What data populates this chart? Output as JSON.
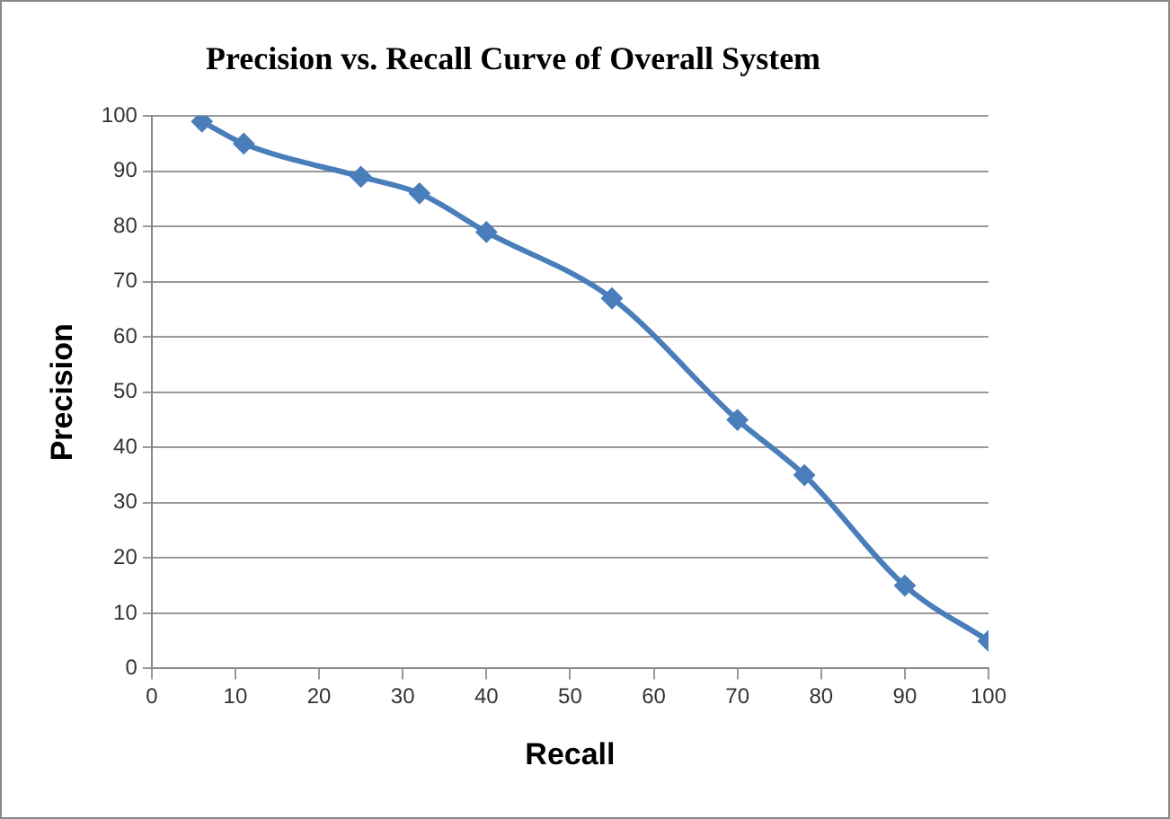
{
  "chart_data": {
    "type": "line",
    "title": "Precision vs. Recall Curve of Overall System",
    "xlabel": "Recall",
    "ylabel": "Precision",
    "x": [
      6,
      11,
      25,
      32,
      40,
      55,
      70,
      78,
      90,
      100
    ],
    "series": [
      {
        "color": "#4a7ebb",
        "values": [
          99,
          95,
          89,
          86,
          79,
          67,
          45,
          35,
          15,
          5
        ]
      }
    ],
    "xlim": [
      0,
      100
    ],
    "xticks": [
      0,
      10,
      20,
      30,
      40,
      50,
      60,
      70,
      80,
      90,
      100
    ],
    "ylim": [
      0,
      100
    ],
    "yticks": [
      0,
      10,
      20,
      30,
      40,
      50,
      60,
      70,
      80,
      90,
      100
    ],
    "grid": "y",
    "legend": false,
    "marker": "diamond",
    "line_style": "solid"
  }
}
